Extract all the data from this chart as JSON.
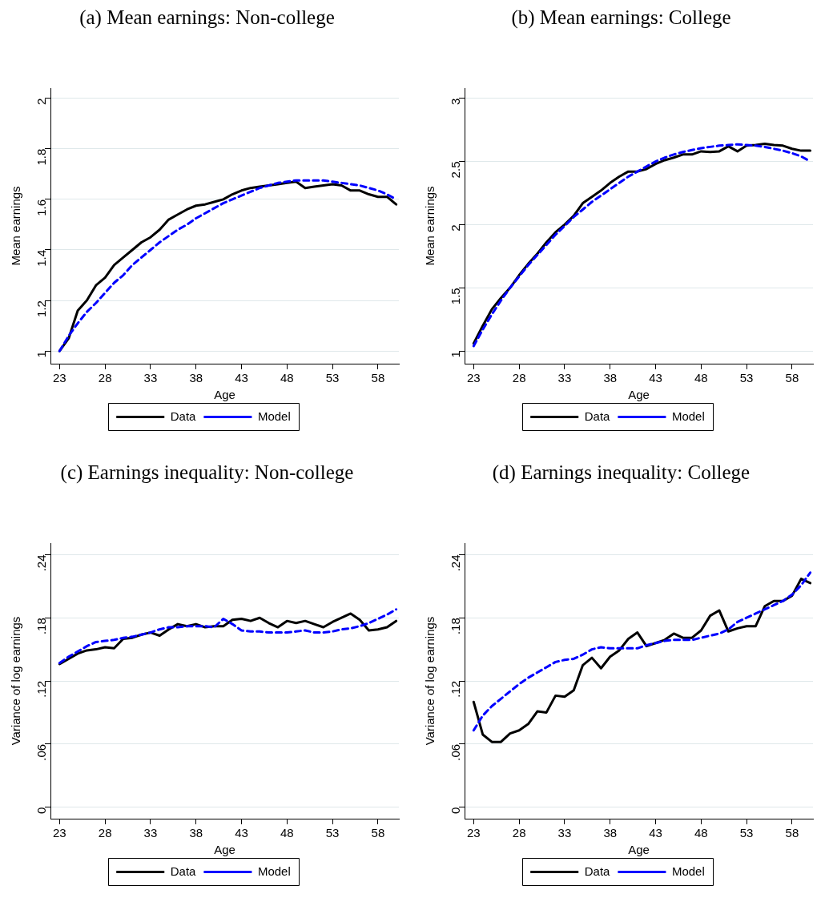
{
  "chart_data": [
    {
      "type": "line",
      "title": "(a) Mean earnings: Non-college",
      "xlabel": "Age",
      "ylabel": "Mean earnings",
      "legend": "bottom",
      "grid": "y",
      "x": [
        23,
        24,
        25,
        26,
        27,
        28,
        29,
        30,
        31,
        32,
        33,
        34,
        35,
        36,
        37,
        38,
        39,
        40,
        41,
        42,
        43,
        44,
        45,
        46,
        47,
        48,
        49,
        50,
        51,
        52,
        53,
        54,
        55,
        56,
        57,
        58,
        59,
        60
      ],
      "xlim": [
        22,
        60.3
      ],
      "xticks": [
        23,
        28,
        33,
        38,
        43,
        48,
        53,
        58
      ],
      "ylim": [
        0.95,
        2.04
      ],
      "yticks": [
        1,
        1.2,
        1.4,
        1.6,
        1.8,
        2
      ],
      "series": [
        {
          "name": "Data",
          "color": "#000000",
          "line_style": "solid",
          "values": [
            1.0,
            1.05,
            1.16,
            1.2,
            1.26,
            1.29,
            1.34,
            1.37,
            1.4,
            1.43,
            1.45,
            1.48,
            1.52,
            1.54,
            1.56,
            1.575,
            1.58,
            1.59,
            1.6,
            1.62,
            1.635,
            1.645,
            1.65,
            1.655,
            1.66,
            1.665,
            1.67,
            1.645,
            1.65,
            1.655,
            1.66,
            1.655,
            1.635,
            1.635,
            1.62,
            1.61,
            1.61,
            1.58
          ]
        },
        {
          "name": "Model",
          "color": "#0000ff",
          "line_style": "dashed",
          "values": [
            1.0,
            1.06,
            1.11,
            1.155,
            1.19,
            1.23,
            1.27,
            1.3,
            1.34,
            1.37,
            1.4,
            1.43,
            1.455,
            1.48,
            1.5,
            1.525,
            1.545,
            1.565,
            1.585,
            1.6,
            1.615,
            1.63,
            1.645,
            1.655,
            1.665,
            1.67,
            1.675,
            1.675,
            1.675,
            1.675,
            1.67,
            1.665,
            1.66,
            1.655,
            1.645,
            1.635,
            1.62,
            1.6
          ]
        }
      ]
    },
    {
      "type": "line",
      "title": "(b) Mean earnings: College",
      "xlabel": "Age",
      "ylabel": "Mean earnings",
      "legend": "bottom",
      "grid": "y",
      "x": [
        23,
        24,
        25,
        26,
        27,
        28,
        29,
        30,
        31,
        32,
        33,
        34,
        35,
        36,
        37,
        38,
        39,
        40,
        41,
        42,
        43,
        44,
        45,
        46,
        47,
        48,
        49,
        50,
        51,
        52,
        53,
        54,
        55,
        56,
        57,
        58,
        59,
        60
      ],
      "xlim": [
        22,
        60.3
      ],
      "xticks": [
        23,
        28,
        33,
        38,
        43,
        48,
        53,
        58
      ],
      "ylim": [
        0.9,
        3.08
      ],
      "yticks": [
        1,
        1.5,
        2,
        2.5,
        3
      ],
      "series": [
        {
          "name": "Data",
          "color": "#000000",
          "line_style": "solid",
          "values": [
            1.06,
            1.2,
            1.33,
            1.42,
            1.5,
            1.6,
            1.69,
            1.77,
            1.86,
            1.94,
            2.0,
            2.07,
            2.17,
            2.22,
            2.27,
            2.33,
            2.38,
            2.42,
            2.42,
            2.44,
            2.48,
            2.51,
            2.53,
            2.555,
            2.555,
            2.58,
            2.575,
            2.58,
            2.62,
            2.58,
            2.625,
            2.63,
            2.64,
            2.63,
            2.625,
            2.6,
            2.585,
            2.585
          ]
        },
        {
          "name": "Model",
          "color": "#0000ff",
          "line_style": "dashed",
          "values": [
            1.04,
            1.17,
            1.29,
            1.4,
            1.5,
            1.59,
            1.68,
            1.76,
            1.84,
            1.92,
            1.99,
            2.06,
            2.12,
            2.18,
            2.23,
            2.28,
            2.33,
            2.38,
            2.42,
            2.46,
            2.5,
            2.53,
            2.555,
            2.575,
            2.59,
            2.605,
            2.615,
            2.625,
            2.63,
            2.635,
            2.63,
            2.625,
            2.615,
            2.6,
            2.585,
            2.565,
            2.54,
            2.5
          ]
        }
      ]
    },
    {
      "type": "line",
      "title": "(c) Earnings inequality: Non-college",
      "xlabel": "Age",
      "ylabel": "Variance of log earnings",
      "legend": "bottom",
      "grid": "y",
      "x": [
        23,
        24,
        25,
        26,
        27,
        28,
        29,
        30,
        31,
        32,
        33,
        34,
        35,
        36,
        37,
        38,
        39,
        40,
        41,
        42,
        43,
        44,
        45,
        46,
        47,
        48,
        49,
        50,
        51,
        52,
        53,
        54,
        55,
        56,
        57,
        58,
        59,
        60
      ],
      "xlim": [
        22,
        60.3
      ],
      "xticks": [
        23,
        28,
        33,
        38,
        43,
        48,
        53,
        58
      ],
      "ylim": [
        -0.011,
        0.251
      ],
      "yticks": [
        0,
        {
          "value": 0.06,
          "label": ".06"
        },
        {
          "value": 0.12,
          "label": ".12"
        },
        {
          "value": 0.18,
          "label": ".18"
        },
        {
          "value": 0.24,
          "label": ".24"
        }
      ],
      "series": [
        {
          "name": "Data",
          "color": "#000000",
          "line_style": "solid",
          "values": [
            0.136,
            0.141,
            0.146,
            0.149,
            0.15,
            0.152,
            0.151,
            0.16,
            0.161,
            0.164,
            0.166,
            0.163,
            0.169,
            0.174,
            0.172,
            0.174,
            0.171,
            0.172,
            0.172,
            0.178,
            0.179,
            0.177,
            0.18,
            0.175,
            0.171,
            0.177,
            0.175,
            0.177,
            0.174,
            0.171,
            0.176,
            0.18,
            0.184,
            0.178,
            0.168,
            0.169,
            0.171,
            0.177
          ]
        },
        {
          "name": "Model",
          "color": "#0000ff",
          "line_style": "dashed",
          "values": [
            0.137,
            0.143,
            0.148,
            0.153,
            0.157,
            0.158,
            0.159,
            0.161,
            0.162,
            0.164,
            0.166,
            0.169,
            0.171,
            0.171,
            0.172,
            0.172,
            0.172,
            0.171,
            0.179,
            0.174,
            0.168,
            0.167,
            0.167,
            0.166,
            0.166,
            0.166,
            0.167,
            0.168,
            0.166,
            0.166,
            0.167,
            0.169,
            0.17,
            0.172,
            0.175,
            0.179,
            0.183,
            0.188
          ]
        }
      ]
    },
    {
      "type": "line",
      "title": "(d) Earnings inequality: College",
      "xlabel": "Age",
      "ylabel": "Variance of log earnings",
      "legend": "bottom",
      "grid": "y",
      "x": [
        23,
        24,
        25,
        26,
        27,
        28,
        29,
        30,
        31,
        32,
        33,
        34,
        35,
        36,
        37,
        38,
        39,
        40,
        41,
        42,
        43,
        44,
        45,
        46,
        47,
        48,
        49,
        50,
        51,
        52,
        53,
        54,
        55,
        56,
        57,
        58,
        59,
        60
      ],
      "xlim": [
        22,
        60.3
      ],
      "xticks": [
        23,
        28,
        33,
        38,
        43,
        48,
        53,
        58
      ],
      "ylim": [
        -0.011,
        0.251
      ],
      "yticks": [
        0,
        {
          "value": 0.06,
          "label": ".06"
        },
        {
          "value": 0.12,
          "label": ".12"
        },
        {
          "value": 0.18,
          "label": ".18"
        },
        {
          "value": 0.24,
          "label": ".24"
        }
      ],
      "series": [
        {
          "name": "Data",
          "color": "#000000",
          "line_style": "solid",
          "values": [
            0.1,
            0.069,
            0.062,
            0.062,
            0.07,
            0.073,
            0.079,
            0.091,
            0.09,
            0.106,
            0.105,
            0.111,
            0.135,
            0.142,
            0.132,
            0.143,
            0.149,
            0.16,
            0.166,
            0.153,
            0.156,
            0.159,
            0.165,
            0.161,
            0.161,
            0.168,
            0.182,
            0.187,
            0.167,
            0.17,
            0.172,
            0.172,
            0.191,
            0.196,
            0.196,
            0.201,
            0.217,
            0.213
          ]
        },
        {
          "name": "Model",
          "color": "#0000ff",
          "line_style": "dashed",
          "values": [
            0.073,
            0.087,
            0.096,
            0.103,
            0.11,
            0.117,
            0.123,
            0.128,
            0.133,
            0.138,
            0.14,
            0.141,
            0.145,
            0.15,
            0.152,
            0.151,
            0.151,
            0.151,
            0.151,
            0.154,
            0.156,
            0.158,
            0.159,
            0.159,
            0.159,
            0.161,
            0.163,
            0.165,
            0.169,
            0.176,
            0.18,
            0.184,
            0.188,
            0.192,
            0.196,
            0.202,
            0.211,
            0.223
          ]
        }
      ]
    }
  ]
}
